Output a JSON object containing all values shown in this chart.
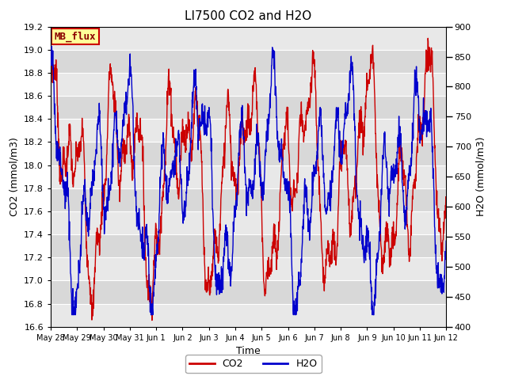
{
  "title": "LI7500 CO2 and H2O",
  "xlabel": "Time",
  "ylabel_left": "CO2 (mmol/m3)",
  "ylabel_right": "H2O (mmol/m3)",
  "ylim_left": [
    16.6,
    19.2
  ],
  "ylim_right": [
    400,
    900
  ],
  "yticks_left": [
    16.6,
    16.8,
    17.0,
    17.2,
    17.4,
    17.6,
    17.8,
    18.0,
    18.2,
    18.4,
    18.6,
    18.8,
    19.0,
    19.2
  ],
  "yticks_right": [
    400,
    450,
    500,
    550,
    600,
    650,
    700,
    750,
    800,
    850,
    900
  ],
  "co2_color": "#cc0000",
  "h2o_color": "#0000cc",
  "line_width": 1.0,
  "mb_flux_label": "MB_flux",
  "mb_flux_bg": "#ffff99",
  "mb_flux_border": "#cc0000",
  "bg_color": "#ffffff",
  "plot_bg_light": "#e8e8e8",
  "plot_bg_dark": "#d8d8d8",
  "legend_co2": "CO2",
  "legend_h2o": "H2O",
  "title_fontsize": 11,
  "axis_label_fontsize": 9,
  "tick_fontsize": 8,
  "legend_fontsize": 9,
  "n_points": 1500,
  "xtick_labels": [
    "May 28",
    "May 29",
    "May 30",
    "May 31",
    "Jun 1",
    "Jun 2",
    "Jun 3",
    "Jun 4",
    "Jun 5",
    "Jun 6",
    "Jun 7",
    "Jun 8",
    "Jun 9",
    "Jun 10",
    "Jun 11",
    "Jun 12"
  ]
}
